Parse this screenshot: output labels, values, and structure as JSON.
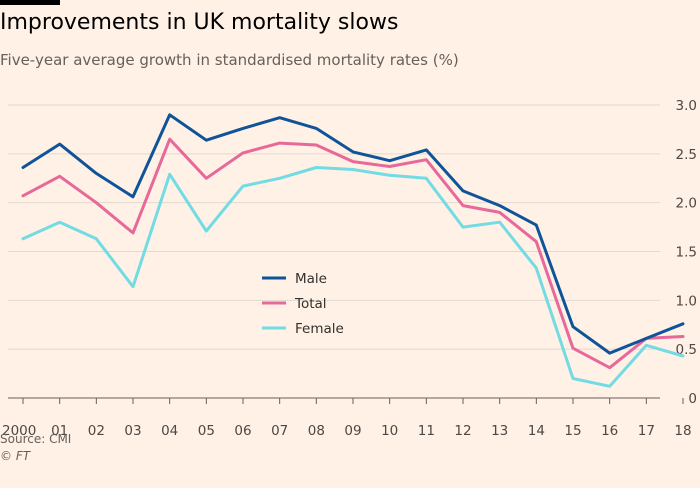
{
  "header": {
    "title": "Improvements in UK mortality slows",
    "subtitle": "Five-year average growth in standardised mortality rates (%)"
  },
  "footer": {
    "source": "Source: CMI",
    "credit": "© FT"
  },
  "colors": {
    "background": "#fff1e5",
    "male": "#0f5499",
    "total": "#e7699a",
    "female": "#72dbe3",
    "grid": "#e3d9cf"
  },
  "chart_data": {
    "type": "line",
    "title": "Improvements in UK mortality slows",
    "subtitle": "Five-year average growth in standardised mortality rates (%)",
    "xlabel": "",
    "ylabel": "",
    "x": [
      "2000",
      "01",
      "02",
      "03",
      "04",
      "05",
      "06",
      "07",
      "08",
      "09",
      "10",
      "11",
      "12",
      "13",
      "14",
      "15",
      "16",
      "17",
      "18"
    ],
    "ylim": [
      0,
      3.0
    ],
    "yticks": [
      "0",
      "0.5",
      "1.0",
      "1.5",
      "2.0",
      "2.5",
      "3.0"
    ],
    "ytick_values": [
      0,
      0.5,
      1.0,
      1.5,
      2.0,
      2.5,
      3.0
    ],
    "grid": true,
    "legend": "center",
    "series": [
      {
        "name": "Male",
        "color": "#0f5499",
        "values": [
          2.36,
          2.6,
          2.3,
          2.06,
          2.9,
          2.64,
          2.76,
          2.87,
          2.76,
          2.52,
          2.43,
          2.54,
          2.12,
          1.97,
          1.77,
          0.73,
          0.46,
          0.61,
          0.76
        ]
      },
      {
        "name": "Total",
        "color": "#e7699a",
        "values": [
          2.07,
          2.27,
          2.0,
          1.69,
          2.65,
          2.25,
          2.51,
          2.61,
          2.59,
          2.42,
          2.37,
          2.44,
          1.97,
          1.9,
          1.6,
          0.51,
          0.31,
          0.61,
          0.63
        ]
      },
      {
        "name": "Female",
        "color": "#72dbe3",
        "values": [
          1.63,
          1.8,
          1.63,
          1.14,
          2.29,
          1.71,
          2.17,
          2.25,
          2.36,
          2.34,
          2.28,
          2.25,
          1.75,
          1.8,
          1.33,
          0.2,
          0.12,
          0.54,
          0.43
        ]
      }
    ]
  }
}
